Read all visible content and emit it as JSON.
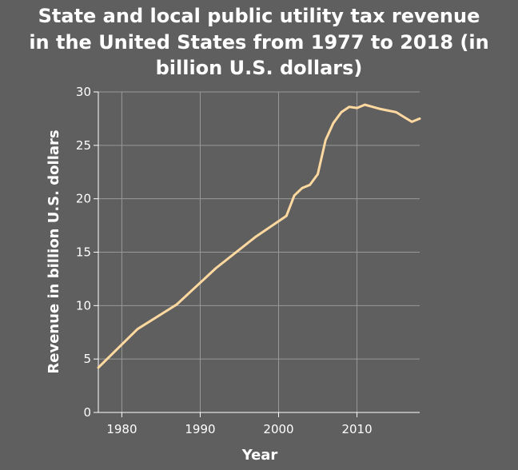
{
  "chart_data": {
    "type": "line",
    "title_lines": [
      "State and local public utility tax revenue",
      "in the United States from 1977 to 2018 (in",
      "billion U.S. dollars)"
    ],
    "xlabel": "Year",
    "ylabel": "Revenue in billion U.S. dollars",
    "xlim": [
      1977,
      2018
    ],
    "ylim": [
      0,
      30
    ],
    "x_ticks": [
      1980,
      1990,
      2000,
      2010
    ],
    "y_ticks": [
      0,
      5,
      10,
      15,
      20,
      25,
      30
    ],
    "grid": true,
    "legend": "none",
    "colors": {
      "background": "#5f5f5f",
      "line": "#ffd9a0",
      "grid": "#999999",
      "text": "#ffffff"
    },
    "series": [
      {
        "x": [
          1977,
          1982,
          1987,
          1992,
          1997,
          2001,
          2002,
          2003,
          2004,
          2005,
          2006,
          2007,
          2008,
          2009,
          2010,
          2011,
          2012,
          2013,
          2015,
          2017,
          2018
        ],
        "values": [
          4.2,
          7.8,
          10.1,
          13.5,
          16.4,
          18.4,
          20.3,
          21.0,
          21.3,
          22.3,
          25.5,
          27.1,
          28.1,
          28.6,
          28.5,
          28.8,
          28.6,
          28.4,
          28.1,
          27.2,
          27.5
        ]
      }
    ]
  }
}
